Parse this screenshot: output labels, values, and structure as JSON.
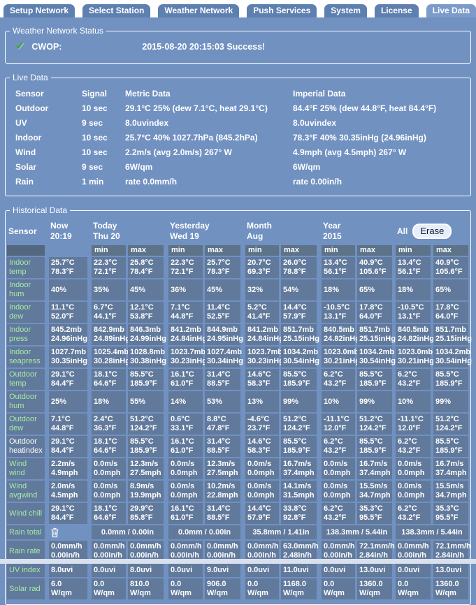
{
  "colors": {
    "page_bg": "#7191C1",
    "tab_inactive": "#5E80B0",
    "tab_active": "#7C9BCA",
    "cell_bg": "#61799B",
    "subheader_bg": "#5C7389",
    "sensor_corner_bg": "#53677E",
    "label_green": "#A5ECA5",
    "erase_bg": "#E6EDFB",
    "erase_text": "#12182B",
    "check_green": "#3FA33F",
    "footer_bg": "#D9E0EE"
  },
  "tabs": [
    {
      "label": "Setup Network",
      "active": false
    },
    {
      "label": "Select Station",
      "active": false
    },
    {
      "label": "Weather Network",
      "active": false
    },
    {
      "label": "Push Services",
      "active": false
    },
    {
      "label": "System",
      "active": false
    },
    {
      "label": "License",
      "active": false
    },
    {
      "label": "Live Data",
      "active": true
    }
  ],
  "status": {
    "legend": "Weather Network Status",
    "icon": "check-icon",
    "service": "CWOP:",
    "message": "2015-08-20 20:15:03 Success!"
  },
  "live": {
    "legend": "Live Data",
    "headers": [
      "Sensor",
      "Signal",
      "Metric Data",
      "Imperial Data"
    ],
    "rows": [
      {
        "sensor": "Outdoor",
        "signal": "10 sec",
        "metric": "29.1°C 25% (dew 7.1°C, heat 29.1°C)",
        "imperial": "84.4°F 25% (dew 44.8°F, heat 84.4°F)"
      },
      {
        "sensor": "UV",
        "signal": "9 sec",
        "metric": "8.0uvindex",
        "imperial": "8.0uvindex"
      },
      {
        "sensor": "Indoor",
        "signal": "10 sec",
        "metric": "25.7°C 40% 1027.7hPa (845.2hPa)",
        "imperial": "78.3°F 40% 30.35inHg (24.96inHg)"
      },
      {
        "sensor": "Wind",
        "signal": "10 sec",
        "metric": "2.2m/s (avg 2.0m/s) 267° W",
        "imperial": "4.9mph (avg 4.5mph) 267° W"
      },
      {
        "sensor": "Solar",
        "signal": "9 sec",
        "metric": "6W/qm",
        "imperial": "6W/qm"
      },
      {
        "sensor": "Rain",
        "signal": "1 min",
        "metric": "rate 0.0mm/h",
        "imperial": "rate 0.00in/h"
      }
    ]
  },
  "historical": {
    "legend": "Historical Data",
    "erase_label": "Erase",
    "minmax": [
      "min",
      "max"
    ],
    "columns": [
      {
        "key": "sensor",
        "label": "Sensor"
      },
      {
        "key": "now",
        "label": "Now\n20:19"
      },
      {
        "key": "today",
        "label": "Today\nThu 20"
      },
      {
        "key": "yesterday",
        "label": "Yesterday\nWed 19"
      },
      {
        "key": "month",
        "label": "Month\nAug"
      },
      {
        "key": "year",
        "label": "Year\n2015"
      },
      {
        "key": "all",
        "label": "All"
      }
    ],
    "rows": [
      {
        "sensor": "Indoor\ntemp",
        "label_color": "green",
        "cells": [
          "25.7°C\n78.3°F",
          "22.3°C\n72.1°F",
          "25.8°C\n78.4°F",
          "22.3°C\n72.1°F",
          "25.7°C\n78.3°F",
          "20.7°C\n69.3°F",
          "26.0°C\n78.8°F",
          "13.4°C\n56.1°F",
          "40.9°C\n105.6°F",
          "13.4°C\n56.1°F",
          "40.9°C\n105.6°F"
        ]
      },
      {
        "sensor": "Indoor\nhum",
        "label_color": "green",
        "cells": [
          "40%",
          "35%",
          "45%",
          "36%",
          "45%",
          "32%",
          "54%",
          "18%",
          "65%",
          "18%",
          "65%"
        ]
      },
      {
        "sensor": "Indoor\ndew",
        "label_color": "green",
        "cells": [
          "11.1°C\n52.0°F",
          "6.7°C\n44.1°F",
          "12.1°C\n53.8°F",
          "7.1°C\n44.8°F",
          "11.4°C\n52.5°F",
          "5.2°C\n41.4°F",
          "14.4°C\n57.9°F",
          "-10.5°C\n13.1°F",
          "17.8°C\n64.0°F",
          "-10.5°C\n13.1°F",
          "17.8°C\n64.0°F"
        ]
      },
      {
        "sensor": "Indoor\npress",
        "label_color": "green",
        "cells": [
          "845.2mb\n24.96inHg",
          "842.9mb\n24.89inHg",
          "846.3mb\n24.99inHg",
          "841.2mb\n24.84inHg",
          "844.9mb\n24.95inHg",
          "841.2mb\n24.84inHg",
          "851.7mb\n25.15inHg",
          "840.5mb\n24.82inHg",
          "851.7mb\n25.15inHg",
          "840.5mb\n24.82inHg",
          "851.7mb\n25.15inHg"
        ]
      },
      {
        "sensor": "Indoor\nseapress",
        "label_color": "green",
        "cells": [
          "1027.7mb\n30.35inHg",
          "1025.4mb\n30.28inHg",
          "1028.8mb\n30.38inHg",
          "1023.7mb\n30.23inHg",
          "1027.4mb\n30.34inHg",
          "1023.7mb\n30.23inHg",
          "1034.2mb\n30.54inHg",
          "1023.0mb\n30.21inHg",
          "1034.2mb\n30.54inHg",
          "1023.0mb\n30.21inHg",
          "1034.2mb\n30.54inHg"
        ]
      },
      {
        "sensor": "Outdoor\ntemp",
        "label_color": "green",
        "cells": [
          "29.1°C\n84.4°F",
          "18.1°C\n64.6°F",
          "85.5°C\n185.9°F",
          "16.1°C\n61.0°F",
          "31.4°C\n88.5°F",
          "14.6°C\n58.3°F",
          "85.5°C\n185.9°F",
          "6.2°C\n43.2°F",
          "85.5°C\n185.9°F",
          "6.2°C\n43.2°F",
          "85.5°C\n185.9°F"
        ]
      },
      {
        "sensor": "Outdoor\nhum",
        "label_color": "green",
        "cells": [
          "25%",
          "18%",
          "55%",
          "14%",
          "53%",
          "13%",
          "99%",
          "10%",
          "99%",
          "10%",
          "99%"
        ]
      },
      {
        "sensor": "Outdoor\ndew",
        "label_color": "green",
        "cells": [
          "7.1°C\n44.8°F",
          "2.4°C\n36.3°F",
          "51.2°C\n124.2°F",
          "0.6°C\n33.1°F",
          "8.8°C\n47.8°F",
          "-4.6°C\n23.7°F",
          "51.2°C\n124.2°F",
          "-11.1°C\n12.0°F",
          "51.2°C\n124.2°F",
          "-11.1°C\n12.0°F",
          "51.2°C\n124.2°F"
        ]
      },
      {
        "sensor": "Outdoor\nheatindex",
        "label_color": "white",
        "cells": [
          "29.1°C\n84.4°F",
          "18.1°C\n64.6°F",
          "85.5°C\n185.9°F",
          "16.1°C\n61.0°F",
          "31.4°C\n88.5°F",
          "14.6°C\n58.3°F",
          "85.5°C\n185.9°F",
          "6.2°C\n43.2°F",
          "85.5°C\n185.9°F",
          "6.2°C\n43.2°F",
          "85.5°C\n185.9°F"
        ]
      },
      {
        "sensor": "Wind\nwind",
        "label_color": "green",
        "cells": [
          "2.2m/s\n4.9mph",
          "0.0m/s\n0.0mph",
          "12.3m/s\n27.5mph",
          "0.0m/s\n0.0mph",
          "12.3m/s\n27.5mph",
          "0.0m/s\n0.0mph",
          "16.7m/s\n37.4mph",
          "0.0m/s\n0.0mph",
          "16.7m/s\n37.4mph",
          "0.0m/s\n0.0mph",
          "16.7m/s\n37.4mph"
        ]
      },
      {
        "sensor": "Wind\navgwind",
        "label_color": "green",
        "cells": [
          "2.0m/s\n4.5mph",
          "0.0m/s\n0.0mph",
          "8.9m/s\n19.9mph",
          "0.0m/s\n0.0mph",
          "10.2m/s\n22.8mph",
          "0.0m/s\n0.0mph",
          "14.1m/s\n31.5mph",
          "0.0m/s\n0.0mph",
          "15.5m/s\n34.7mph",
          "0.0m/s\n0.0mph",
          "15.5m/s\n34.7mph"
        ]
      },
      {
        "sensor": "Wind chill",
        "label_color": "green",
        "cells": [
          "29.1°C\n84.4°F",
          "18.1°C\n64.6°F",
          "29.9°C\n85.8°F",
          "16.1°C\n61.0°F",
          "31.4°C\n88.5°F",
          "14.4°C\n57.9°F",
          "33.8°C\n92.8°F",
          "6.2°C\n43.2°F",
          "35.3°C\n95.5°F",
          "6.2°C\n43.2°F",
          "35.3°C\n95.5°F"
        ]
      },
      {
        "sensor": "Rain total",
        "label_color": "green",
        "type": "merged",
        "trash": true,
        "cells": [
          "0.0mm / 0.00in",
          "0.0mm / 0.00in",
          "35.8mm / 1.41in",
          "138.3mm / 5.44in",
          "138.3mm / 5.44in"
        ]
      },
      {
        "sensor": "Rain rate",
        "label_color": "green",
        "cells": [
          "0.0mm/h\n0.00in/h",
          "0.0mm/h\n0.00in/h",
          "0.0mm/h\n0.00in/h",
          "0.0mm/h\n0.00in/h",
          "0.0mm/h\n0.00in/h",
          "0.0mm/h\n0.00in/h",
          "63.0mm/h\n2.48in/h",
          "0.0mm/h\n0.00in/h",
          "72.1mm/h\n2.84in/h",
          "0.0mm/h\n0.00in/h",
          "72.1mm/h\n2.84in/h"
        ]
      },
      {
        "sensor": "UV index",
        "label_color": "green",
        "cells": [
          "8.0uvi",
          "0.0uvi",
          "8.0uvi",
          "0.0uvi",
          "9.0uvi",
          "0.0uvi",
          "11.0uvi",
          "0.0uvi",
          "13.0uvi",
          "0.0uvi",
          "13.0uvi"
        ]
      },
      {
        "sensor": "Solar rad",
        "label_color": "green",
        "cells": [
          "6.0\nW/qm",
          "0.0\nW/qm",
          "810.0\nW/qm",
          "0.0\nW/qm",
          "906.0\nW/qm",
          "0.0\nW/qm",
          "1168.0\nW/qm",
          "0.0\nW/qm",
          "1360.0\nW/qm",
          "0.0\nW/qm",
          "1360.0\nW/qm"
        ]
      }
    ]
  }
}
